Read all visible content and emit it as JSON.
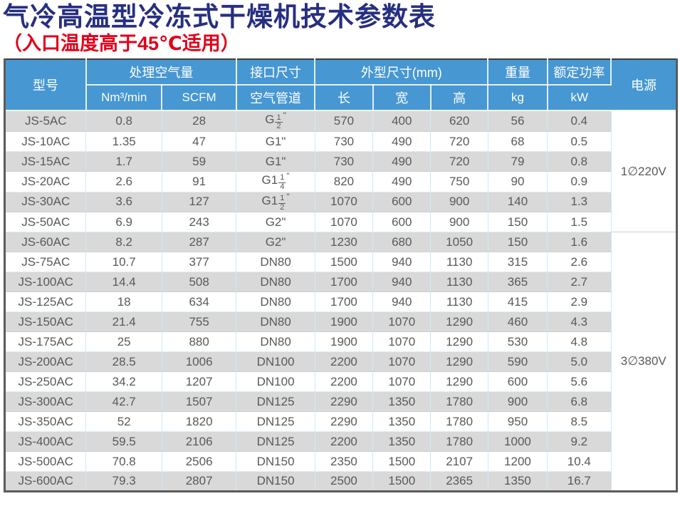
{
  "title": "气冷高温型冷冻式干燥机技术参数表",
  "subtitle": "（入口温度高于45℃适用）",
  "colors": {
    "title": "#262f80",
    "subtitle_red": "#e2001a",
    "header_bg": "#4797d3",
    "stripe_gray": "#d9d9d9",
    "cell_text": "#595959",
    "grid_line": "#cfe9f8",
    "outer_border": "#5b5b5b"
  },
  "table": {
    "headers": {
      "model": "型号",
      "air_flow": "处理空气量",
      "air_flow_units": [
        "Nm³/min",
        "SCFM"
      ],
      "port": "接口尺寸",
      "port_sub": "空气管道",
      "dims": "外型尺寸(mm)",
      "dims_sub": [
        "长",
        "宽",
        "高"
      ],
      "weight": "重量",
      "weight_unit": "kg",
      "power": "额定功率",
      "power_unit": "kW",
      "supply": "电源"
    },
    "rows": [
      {
        "model": "JS-5AC",
        "nm3": "0.8",
        "scfm": "28",
        "pipe": {
          "pre": "G",
          "n": "1",
          "d": "2"
        },
        "l": "570",
        "w": "400",
        "h": "620",
        "kg": "56",
        "kw": "0.4"
      },
      {
        "model": "JS-10AC",
        "nm3": "1.35",
        "scfm": "47",
        "pipe": {
          "text": "G1\""
        },
        "l": "730",
        "w": "490",
        "h": "720",
        "kg": "68",
        "kw": "0.5"
      },
      {
        "model": "JS-15AC",
        "nm3": "1.7",
        "scfm": "59",
        "pipe": {
          "text": "G1\""
        },
        "l": "730",
        "w": "490",
        "h": "720",
        "kg": "79",
        "kw": "0.8"
      },
      {
        "model": "JS-20AC",
        "nm3": "2.6",
        "scfm": "91",
        "pipe": {
          "pre": "G1",
          "n": "1",
          "d": "4"
        },
        "l": "820",
        "w": "490",
        "h": "750",
        "kg": "90",
        "kw": "0.9"
      },
      {
        "model": "JS-30AC",
        "nm3": "3.6",
        "scfm": "127",
        "pipe": {
          "pre": "G1",
          "n": "1",
          "d": "2"
        },
        "l": "1070",
        "w": "600",
        "h": "900",
        "kg": "140",
        "kw": "1.3"
      },
      {
        "model": "JS-50AC",
        "nm3": "6.9",
        "scfm": "243",
        "pipe": {
          "text": "G2\""
        },
        "l": "1070",
        "w": "600",
        "h": "900",
        "kg": "150",
        "kw": "1.5"
      },
      {
        "model": "JS-60AC",
        "nm3": "8.2",
        "scfm": "287",
        "pipe": {
          "text": "G2\""
        },
        "l": "1230",
        "w": "680",
        "h": "1050",
        "kg": "150",
        "kw": "1.6"
      },
      {
        "model": "JS-75AC",
        "nm3": "10.7",
        "scfm": "377",
        "pipe": {
          "text": "DN80"
        },
        "l": "1500",
        "w": "940",
        "h": "1130",
        "kg": "315",
        "kw": "2.6"
      },
      {
        "model": "JS-100AC",
        "nm3": "14.4",
        "scfm": "508",
        "pipe": {
          "text": "DN80"
        },
        "l": "1700",
        "w": "940",
        "h": "1130",
        "kg": "365",
        "kw": "2.7"
      },
      {
        "model": "JS-125AC",
        "nm3": "18",
        "scfm": "634",
        "pipe": {
          "text": "DN80"
        },
        "l": "1700",
        "w": "940",
        "h": "1130",
        "kg": "415",
        "kw": "2.9"
      },
      {
        "model": "JS-150AC",
        "nm3": "21.4",
        "scfm": "755",
        "pipe": {
          "text": "DN80"
        },
        "l": "1900",
        "w": "1070",
        "h": "1290",
        "kg": "460",
        "kw": "4.3"
      },
      {
        "model": "JS-175AC",
        "nm3": "25",
        "scfm": "880",
        "pipe": {
          "text": "DN80"
        },
        "l": "1900",
        "w": "1070",
        "h": "1290",
        "kg": "530",
        "kw": "4.8"
      },
      {
        "model": "JS-200AC",
        "nm3": "28.5",
        "scfm": "1006",
        "pipe": {
          "text": "DN100"
        },
        "l": "2200",
        "w": "1070",
        "h": "1290",
        "kg": "590",
        "kw": "5.0"
      },
      {
        "model": "JS-250AC",
        "nm3": "34.2",
        "scfm": "1207",
        "pipe": {
          "text": "DN100"
        },
        "l": "2200",
        "w": "1070",
        "h": "1290",
        "kg": "600",
        "kw": "5.6"
      },
      {
        "model": "JS-300AC",
        "nm3": "42.7",
        "scfm": "1507",
        "pipe": {
          "text": "DN125"
        },
        "l": "2290",
        "w": "1350",
        "h": "1780",
        "kg": "900",
        "kw": "6.8"
      },
      {
        "model": "JS-350AC",
        "nm3": "52",
        "scfm": "1820",
        "pipe": {
          "text": "DN125"
        },
        "l": "2290",
        "w": "1350",
        "h": "1780",
        "kg": "950",
        "kw": "8.5"
      },
      {
        "model": "JS-400AC",
        "nm3": "59.5",
        "scfm": "2106",
        "pipe": {
          "text": "DN125"
        },
        "l": "2200",
        "w": "1350",
        "h": "1780",
        "kg": "1000",
        "kw": "9.2"
      },
      {
        "model": "JS-500AC",
        "nm3": "70.8",
        "scfm": "2506",
        "pipe": {
          "text": "DN150"
        },
        "l": "2350",
        "w": "1500",
        "h": "2107",
        "kg": "1200",
        "kw": "10.4"
      },
      {
        "model": "JS-600AC",
        "nm3": "79.3",
        "scfm": "2807",
        "pipe": {
          "text": "DN150"
        },
        "l": "2500",
        "w": "1500",
        "h": "2365",
        "kg": "1350",
        "kw": "16.7"
      }
    ],
    "supply_groups": [
      {
        "label": "1∅220V",
        "rows": 6
      },
      {
        "label": "3∅380V",
        "rows": 13
      }
    ]
  }
}
